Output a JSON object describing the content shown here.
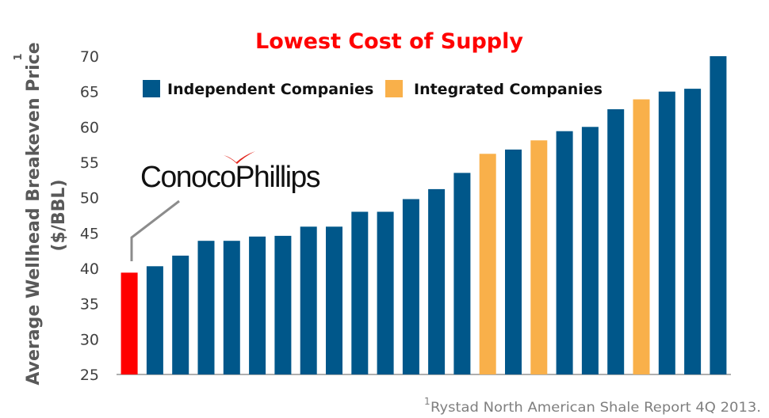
{
  "colors": {
    "independent": "#00578A",
    "integrated": "#F9B04A",
    "conocophillips": "#FF0000",
    "title": "#FF0000",
    "logo_mark": "#E2231A",
    "axis": "#7F7F7F"
  },
  "logo": {
    "text": "ConocoPhillips",
    "icon": "conocophillips-logo-mark"
  },
  "footnote": {
    "marker": "1",
    "text": "Rystad North American Shale Report 4Q 2013."
  },
  "chart_data": {
    "type": "bar",
    "title": "Lowest Cost of Supply",
    "ylabel": "Average Wellhead Breakeven Price",
    "ylabel_superscript": "1",
    "ylabel_line2": "($/BBL)",
    "xlabel": "",
    "ylim": [
      25,
      70
    ],
    "yticks": [
      25,
      30,
      35,
      40,
      45,
      50,
      55,
      60,
      65,
      70
    ],
    "grid": false,
    "legend_position": "top",
    "legend": [
      {
        "name": "Independent Companies",
        "group": "independent"
      },
      {
        "name": "Integrated Companies",
        "group": "integrated"
      }
    ],
    "bars": [
      {
        "value": 39.4,
        "group": "conocophillips"
      },
      {
        "value": 40.3,
        "group": "independent"
      },
      {
        "value": 41.8,
        "group": "independent"
      },
      {
        "value": 43.9,
        "group": "independent"
      },
      {
        "value": 43.9,
        "group": "independent"
      },
      {
        "value": 44.5,
        "group": "independent"
      },
      {
        "value": 44.6,
        "group": "independent"
      },
      {
        "value": 45.9,
        "group": "independent"
      },
      {
        "value": 45.9,
        "group": "independent"
      },
      {
        "value": 48.0,
        "group": "independent"
      },
      {
        "value": 48.0,
        "group": "independent"
      },
      {
        "value": 49.8,
        "group": "independent"
      },
      {
        "value": 51.2,
        "group": "independent"
      },
      {
        "value": 53.5,
        "group": "independent"
      },
      {
        "value": 56.2,
        "group": "integrated"
      },
      {
        "value": 56.8,
        "group": "independent"
      },
      {
        "value": 58.1,
        "group": "integrated"
      },
      {
        "value": 59.4,
        "group": "independent"
      },
      {
        "value": 60.0,
        "group": "independent"
      },
      {
        "value": 62.5,
        "group": "independent"
      },
      {
        "value": 63.9,
        "group": "integrated"
      },
      {
        "value": 65.0,
        "group": "independent"
      },
      {
        "value": 65.4,
        "group": "independent"
      },
      {
        "value": 70.0,
        "group": "independent"
      }
    ]
  }
}
